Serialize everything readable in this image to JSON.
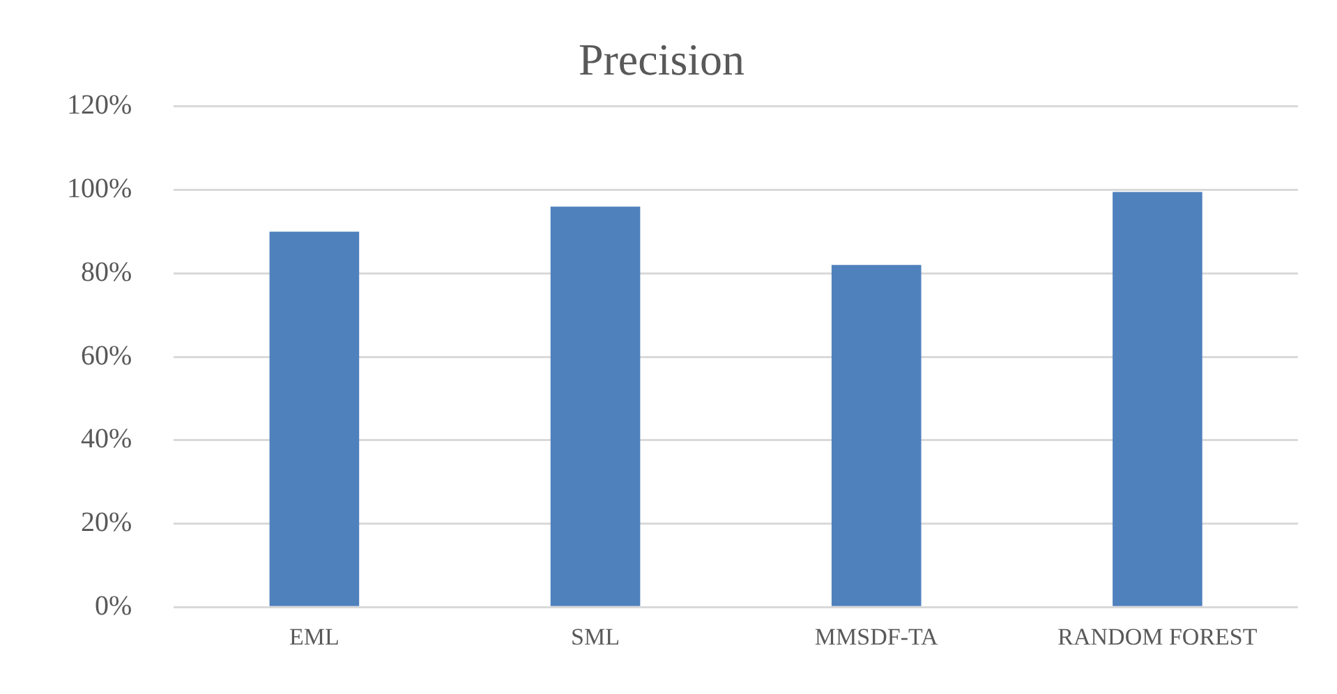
{
  "chart_data": {
    "type": "bar",
    "title": "Precision",
    "categories": [
      "EML",
      "SML",
      "MMSDF-TA",
      "RANDOM FOREST"
    ],
    "values": [
      90,
      96,
      82,
      99.5
    ],
    "color": "#4f81bd",
    "ylim": [
      0,
      120
    ],
    "yticks": [
      {
        "value": 0,
        "label": "0%"
      },
      {
        "value": 20,
        "label": "20%"
      },
      {
        "value": 40,
        "label": "40%"
      },
      {
        "value": 60,
        "label": "60%"
      },
      {
        "value": 80,
        "label": "80%"
      },
      {
        "value": 100,
        "label": "100%"
      },
      {
        "value": 120,
        "label": "120%"
      }
    ],
    "grid": "y",
    "legend": false
  }
}
